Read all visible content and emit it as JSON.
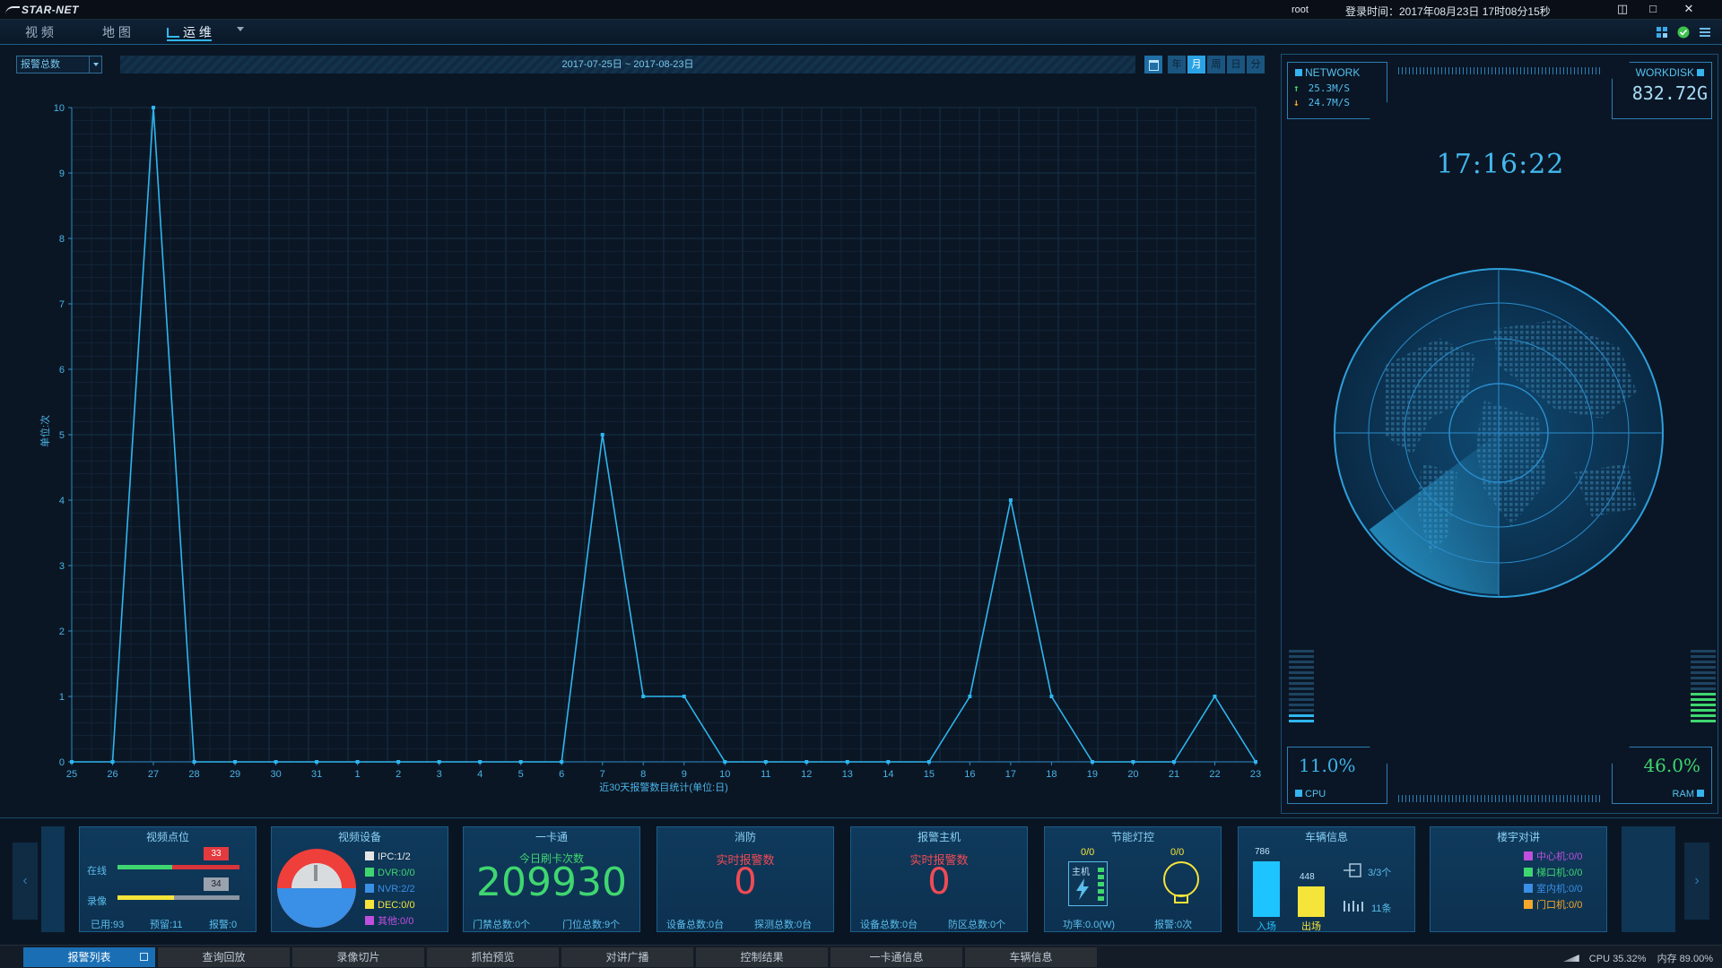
{
  "app": {
    "brand": "STAR-NET"
  },
  "titlebar": {
    "user": "root",
    "login_time": "登录时间：2017年08月23日 17时08分15秒"
  },
  "nav": {
    "tabs": [
      {
        "label": "视 频"
      },
      {
        "label": "地 图"
      },
      {
        "label": "运 维"
      }
    ],
    "active": "运 维"
  },
  "toolbar": {
    "select_value": "报警总数",
    "date_range": "2017-07-25日 ~ 2017-08-23日",
    "periods": [
      "年",
      "月",
      "周",
      "日",
      "分"
    ],
    "active_period": "月"
  },
  "chart_data": {
    "type": "line",
    "ylabel": "单位:次",
    "xlabel": "近30天报警数目统计(单位:日)",
    "ylim": [
      0,
      10
    ],
    "yticks": [
      0,
      1,
      2,
      3,
      4,
      5,
      6,
      7,
      8,
      9,
      10
    ],
    "categories": [
      "25",
      "26",
      "27",
      "28",
      "29",
      "30",
      "31",
      "1",
      "2",
      "3",
      "4",
      "5",
      "6",
      "7",
      "8",
      "9",
      "10",
      "11",
      "12",
      "13",
      "14",
      "15",
      "16",
      "17",
      "18",
      "19",
      "20",
      "21",
      "22",
      "23"
    ],
    "values": [
      0,
      0,
      10,
      0,
      0,
      0,
      0,
      0,
      0,
      0,
      0,
      0,
      0,
      5,
      1,
      1,
      0,
      0,
      0,
      0,
      0,
      0,
      1,
      4,
      1,
      0,
      0,
      0,
      1,
      0
    ],
    "color": "#2fb6ef",
    "grid": true
  },
  "right_panel": {
    "network": {
      "title": "NETWORK",
      "up": "25.3M/S",
      "down": "24.7M/S"
    },
    "workdisk": {
      "title": "WORKDISK",
      "value": "832.72G"
    },
    "clock": "17:16:22",
    "cpu": {
      "label": "CPU",
      "value": "11.0%",
      "level": 0.11
    },
    "ram": {
      "label": "RAM",
      "value": "46.0%",
      "level": 0.46
    }
  },
  "cards": {
    "video_points": {
      "title": "视频点位",
      "online_label": "在线",
      "record_label": "录像",
      "online_badge": "33",
      "record_badge": "34",
      "used": "已用:93",
      "reserved": "预留:11",
      "alarm": "报警:0",
      "online_level": 0.45,
      "record_level": 0.46
    },
    "video_devices": {
      "title": "视频设备",
      "items": [
        "IPC:1/2",
        "DVR:0/0",
        "NVR:2/2",
        "DEC:0/0",
        "其他:0/0"
      ],
      "item_colors": [
        "#e6e6e6",
        "#3fd670",
        "#3a8fe6",
        "#f5e43a",
        "#c04fe0"
      ]
    },
    "one_card": {
      "title": "一卡通",
      "today_label": "今日刷卡次数",
      "count": "209930",
      "door_ctrl": "门禁总数:0个",
      "door_total": "门位总数:9个"
    },
    "fire": {
      "title": "消防",
      "realtime_label": "实时报警数",
      "value": "0",
      "device_total": "设备总数:0台",
      "detector_total": "探测总数:0台"
    },
    "alarm_host": {
      "title": "报警主机",
      "realtime_label": "实时报警数",
      "value": "0",
      "device_total": "设备总数:0台",
      "zone_total": "防区总数:0个"
    },
    "energy": {
      "title": "节能灯控",
      "host_ratio": "0/0",
      "host_label": "主机",
      "lamp_ratio": "0/0",
      "power": "功率:0.0(W)",
      "alarm": "报警:0次"
    },
    "vehicle": {
      "title": "车辆信息",
      "in_value": "786",
      "out_value": "448",
      "in_label": "入场",
      "out_label": "出场",
      "lanes": "3/3个",
      "entries": "11条"
    },
    "intercom": {
      "title": "楼宇对讲",
      "items": [
        "中心机:0/0",
        "梯口机:0/0",
        "室内机:0/0",
        "门口机:0/0"
      ],
      "item_colors": [
        "#c04fe0",
        "#3fd670",
        "#3a8fe6",
        "#f5a82a"
      ]
    }
  },
  "taskbar": {
    "tabs": [
      "报警列表",
      "查询回放",
      "录像切片",
      "抓拍预览",
      "对讲广播",
      "控制结果",
      "一卡通信息",
      "车辆信息"
    ],
    "active": "报警列表",
    "cpu": "CPU 35.32%",
    "memory": "内存 89.00%"
  }
}
